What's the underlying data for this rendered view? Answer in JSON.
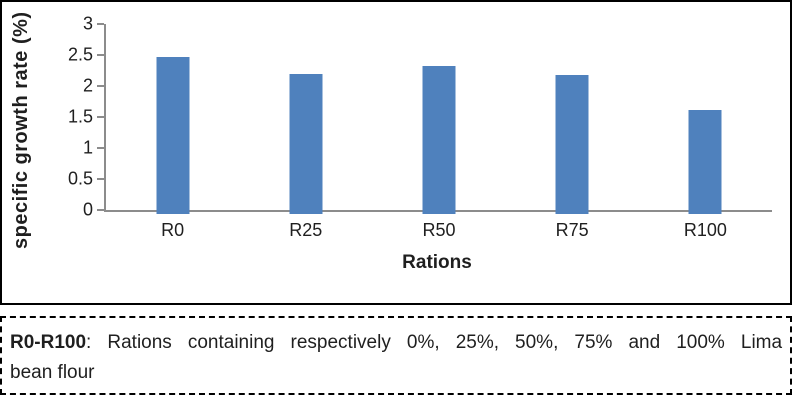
{
  "chart_data": {
    "type": "bar",
    "categories": [
      "R0",
      "R25",
      "R50",
      "R75",
      "R100"
    ],
    "values": [
      2.47,
      2.2,
      2.32,
      2.18,
      1.61
    ],
    "title": "",
    "xlabel": "Rations",
    "ylabel": "specific growth rate (%)",
    "ylim": [
      0,
      3
    ],
    "yticks": [
      0,
      0.5,
      1,
      1.5,
      2,
      2.5,
      3
    ],
    "grid": false,
    "legend": "none",
    "colors": {
      "bar": "#4F81BD",
      "axis": "#8C8C8C",
      "text": "#1F1F1F"
    }
  },
  "caption": {
    "term": "R0-R100",
    "line1_rest": ": Rations containing respectively 0%, 25%, 50%, 75% and 100% Lima",
    "line2": "bean flour"
  }
}
